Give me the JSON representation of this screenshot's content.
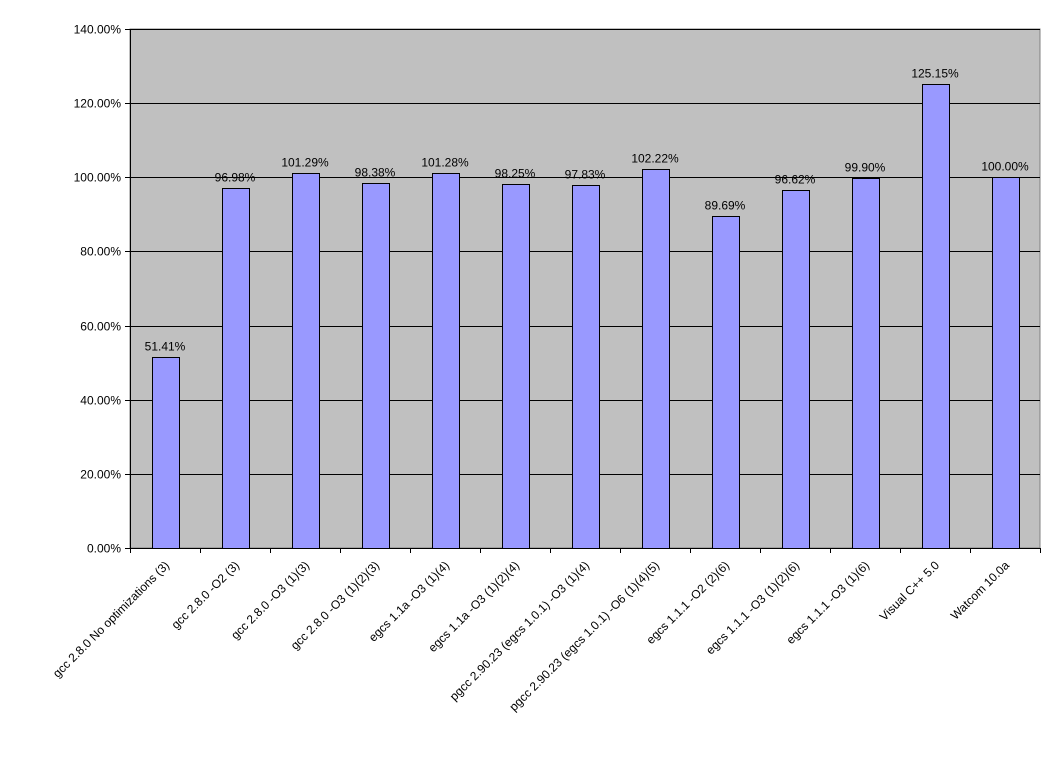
{
  "chart_data": {
    "type": "bar",
    "categories": [
      "gcc 2.8.0 No optimizations (3)",
      "gcc 2.8.0 -O2 (3)",
      "gcc 2.8.0 -O3 (1)(3)",
      "gcc 2.8.0 -O3 (1)(2)(3)",
      "egcs 1.1a -O3 (1)(4)",
      "egcs 1.1a -O3 (1)(2)(4)",
      "pgcc 2.90.23 (egcs 1.0.1) -O3 (1)(4)",
      "pgcc 2.90.23 (egcs 1.0.1) -O6 (1)(4)(5)",
      "egcs 1.1.1 -O2 (2)(6)",
      "egcs 1.1.1 -O3 (1)(2)(6)",
      "egcs 1.1.1 -O3 (1)(6)",
      "Visual C++ 5.0",
      "Watcom 10.0a"
    ],
    "values": [
      51.41,
      96.98,
      101.29,
      98.38,
      101.28,
      98.25,
      97.83,
      102.22,
      89.69,
      96.62,
      99.9,
      125.15,
      100.0
    ],
    "data_labels": [
      "51.41%",
      "96.98%",
      "101.29%",
      "98.38%",
      "101.28%",
      "98.25%",
      "97.83%",
      "102.22%",
      "89.69%",
      "96.62%",
      "99.90%",
      "125.15%",
      "100.00%"
    ],
    "y_ticks": [
      0,
      20,
      40,
      60,
      80,
      100,
      120,
      140
    ],
    "y_tick_labels": [
      "0.00%",
      "20.00%",
      "40.00%",
      "60.00%",
      "80.00%",
      "100.00%",
      "120.00%",
      "140.00%"
    ],
    "ylim": [
      0,
      140
    ],
    "title": "",
    "xlabel": "",
    "ylabel": "",
    "grid": true,
    "legend": "none",
    "colors": {
      "bar": "#9999ff",
      "plot_background": "#c0c0c0",
      "gridline": "#000000",
      "page_background": "#ffffff"
    }
  }
}
